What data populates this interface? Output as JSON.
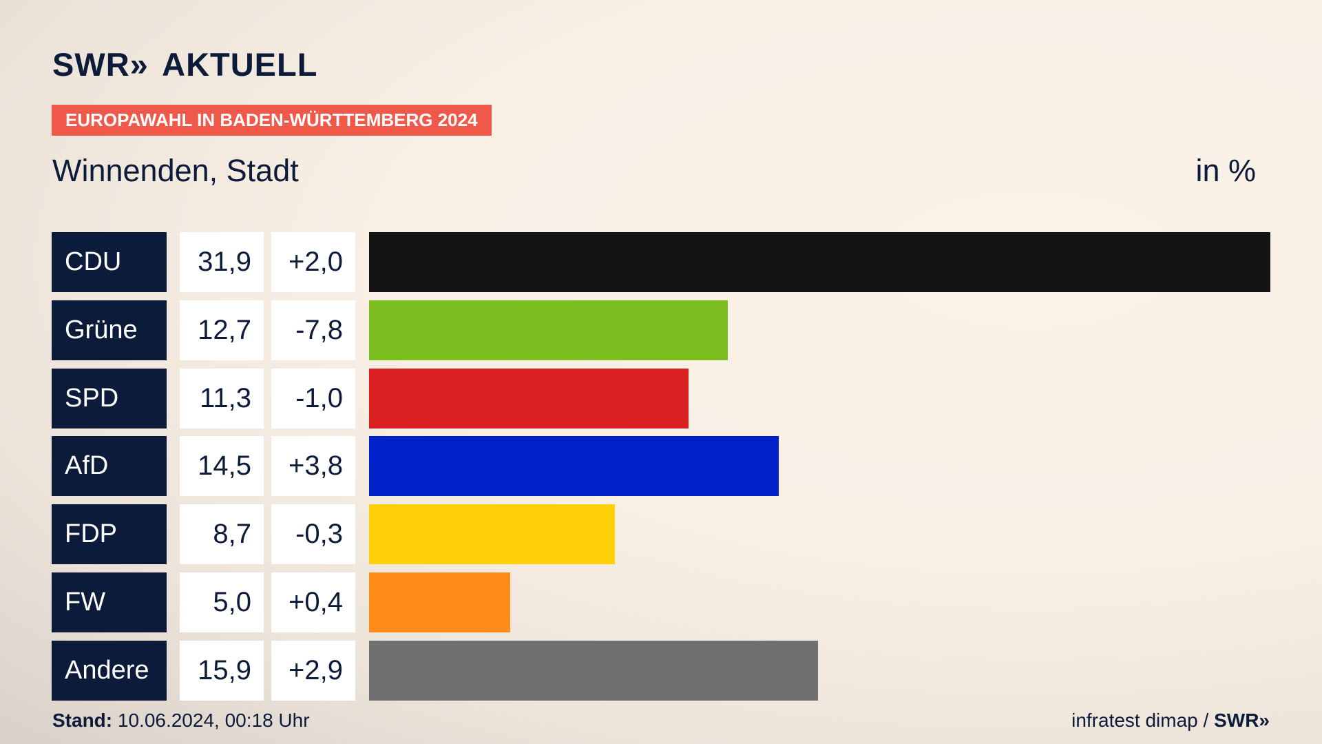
{
  "header": {
    "logo_text": "SWR",
    "logo_chevrons": "»",
    "logo_suffix": "AKTUELL",
    "tag": "EUROPAWAHL IN BADEN-WÜRTTEMBERG 2024",
    "subtitle": "Winnenden, Stadt",
    "unit": "in %"
  },
  "footer": {
    "stand_label": "Stand:",
    "stand_value": "10.06.2024, 00:18 Uhr",
    "source": "infratest dimap / ",
    "source_brand": "SWR»"
  },
  "chart_data": {
    "type": "bar",
    "orientation": "horizontal",
    "categories": [
      "CDU",
      "Grüne",
      "SPD",
      "AfD",
      "FDP",
      "FW",
      "Andere"
    ],
    "values": [
      31.9,
      12.7,
      11.3,
      14.5,
      8.7,
      5.0,
      15.9
    ],
    "value_labels": [
      "31,9",
      "12,7",
      "11,3",
      "14,5",
      "8,7",
      "5,0",
      "15,9"
    ],
    "diff_labels": [
      "+2,0",
      "-7,8",
      "-1,0",
      "+3,8",
      "-0,3",
      "+0,4",
      "+2,9"
    ],
    "diffs": [
      2.0,
      -7.8,
      -1.0,
      3.8,
      -0.3,
      0.4,
      2.9
    ],
    "colors": [
      "#141414",
      "#7bbd1e",
      "#d91f1f",
      "#0021c9",
      "#ffcf08",
      "#ff8c19",
      "#707070"
    ],
    "xlim": [
      0,
      31.9
    ]
  }
}
